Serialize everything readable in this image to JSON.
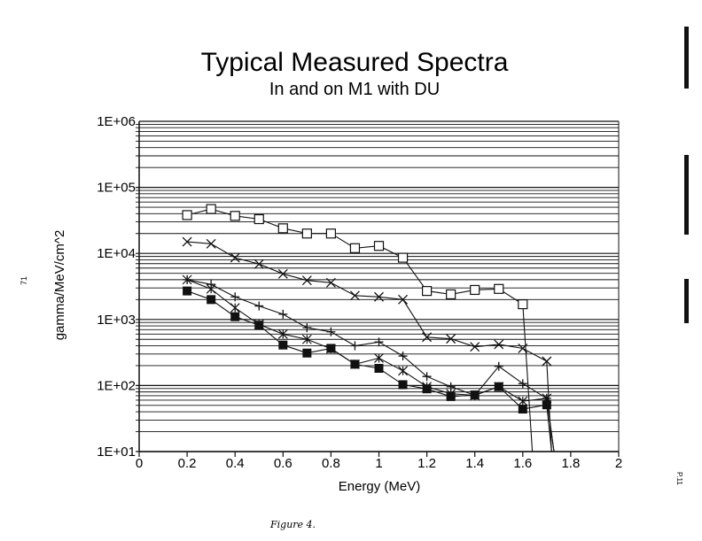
{
  "chart_data": {
    "type": "line",
    "title": "Typical Measured Spectra",
    "subtitle": "In and on M1 with DU",
    "xlabel": "Energy (MeV)",
    "ylabel": "gamma/MeV/cm^2",
    "xlim": [
      0,
      2
    ],
    "ylim": [
      10,
      1000000
    ],
    "yscale": "log",
    "grid": "horizontal minor and major lines",
    "legend": "none",
    "x_ticks": [
      "0",
      "0.2",
      "0.4",
      "0.6",
      "0.8",
      "1",
      "1.2",
      "1.4",
      "1.6",
      "1.8",
      "2"
    ],
    "y_ticks": [
      "1E+01",
      "1E+02",
      "1E+03",
      "1E+04",
      "1E+05",
      "1E+06"
    ],
    "x": [
      0.2,
      0.3,
      0.4,
      0.5,
      0.6,
      0.7,
      0.8,
      0.9,
      1.0,
      1.1,
      1.2,
      1.3,
      1.4,
      1.5,
      1.6,
      1.7
    ],
    "series": [
      {
        "marker": "open-square",
        "values": [
          38000,
          47000,
          37000,
          33000,
          24000,
          20000,
          20000,
          12000,
          13000,
          8600,
          2700,
          2400,
          2800,
          2900,
          1700,
          null
        ],
        "drop_to_axis_at": 1.64
      },
      {
        "marker": "x",
        "values": [
          15000,
          14000,
          8600,
          6900,
          4900,
          3900,
          3600,
          2300,
          2200,
          2000,
          540,
          510,
          385,
          420,
          365,
          233
        ],
        "drop_to_axis_at": 1.72
      },
      {
        "marker": "plus",
        "values": [
          4000,
          3400,
          2200,
          1600,
          1200,
          750,
          650,
          400,
          455,
          280,
          137,
          96,
          71,
          195,
          107,
          64
        ],
        "drop_to_axis_at": 1.73
      },
      {
        "marker": "asterisk",
        "values": [
          4000,
          2900,
          1500,
          840,
          600,
          500,
          360,
          210,
          260,
          167,
          96,
          75,
          71,
          96,
          58,
          64
        ],
        "drop_to_axis_at": 1.73
      },
      {
        "marker": "filled-square",
        "values": [
          2700,
          2000,
          1100,
          820,
          410,
          310,
          365,
          210,
          182,
          103,
          89,
          68,
          72,
          96,
          44,
          51
        ],
        "drop_to_axis_at": 1.72
      }
    ]
  },
  "annotations": {
    "figure_caption": "Figure 4.",
    "page_number": "P.11",
    "margin_mark": "71"
  },
  "colors": {
    "ink": "#111111",
    "background": "#ffffff"
  }
}
